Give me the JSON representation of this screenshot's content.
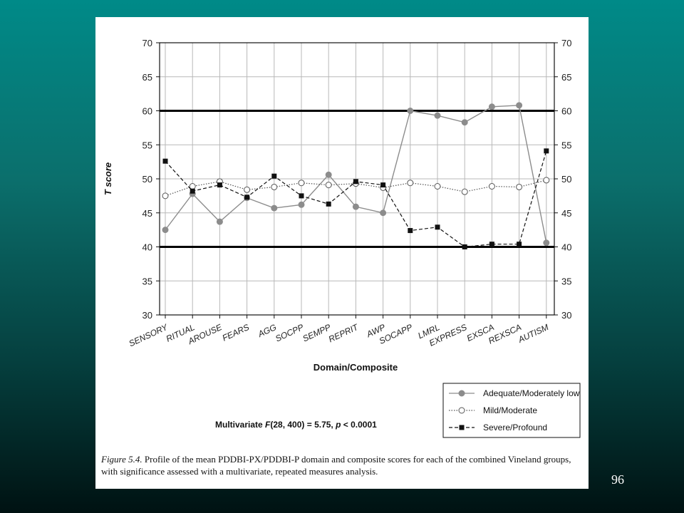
{
  "slide": {
    "page_number": "96"
  },
  "caption": {
    "figure_label": "Figure 5.4.",
    "text": " Profile of the mean PDDBI-PX/PDDBI-P domain and composite scores for each of the combined Vineland groups, with significance assessed with a multivariate, repeated measures analysis."
  },
  "stat": {
    "prefix": "Multivariate ",
    "f": "F",
    "middle": "(28, 400) = 5.75, ",
    "p": "p",
    "suffix": " < 0.0001"
  },
  "chart_data": {
    "type": "line",
    "xlabel": "Domain/Composite",
    "ylabel": "T score",
    "ylim": [
      30,
      70
    ],
    "yticks": [
      30,
      35,
      40,
      45,
      50,
      55,
      60,
      65,
      70
    ],
    "grid": true,
    "reference_lines": [
      40,
      60
    ],
    "legend_position": "bottom-right",
    "categories": [
      "SENSORY",
      "RITUAL",
      "AROUSE",
      "FEARS",
      "AGG",
      "SOCPP",
      "SEMPP",
      "REPRIT",
      "AWP",
      "SOCAPP",
      "LMRL",
      "EXPRESS",
      "EXSCA",
      "REXSCA",
      "AUTISM"
    ],
    "series": [
      {
        "name": "Adequate/Moderately low",
        "color": "#8c8c8c",
        "marker": "filled-circle",
        "line": "solid",
        "values": [
          42.5,
          47.8,
          43.7,
          47.2,
          45.7,
          46.2,
          50.6,
          45.9,
          45.0,
          60.0,
          59.3,
          58.3,
          60.6,
          60.8,
          40.6
        ]
      },
      {
        "name": "Mild/Moderate",
        "color": "#555555",
        "marker": "open-circle",
        "line": "dotted",
        "values": [
          47.5,
          48.9,
          49.6,
          48.4,
          48.8,
          49.4,
          49.1,
          49.3,
          48.7,
          49.4,
          48.9,
          48.1,
          48.9,
          48.8,
          49.8
        ]
      },
      {
        "name": "Severe/Profound",
        "color": "#111111",
        "marker": "filled-square",
        "line": "dashed",
        "values": [
          52.6,
          48.2,
          49.1,
          47.3,
          50.4,
          47.5,
          46.3,
          49.6,
          49.1,
          42.4,
          42.9,
          40.0,
          40.4,
          40.4,
          54.1
        ]
      }
    ]
  }
}
